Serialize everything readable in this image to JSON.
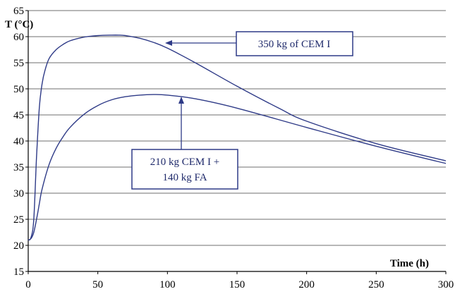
{
  "chart_data": {
    "type": "line",
    "xlabel": "Time (h)",
    "ylabel": "T (°C)",
    "xlim": [
      0,
      300
    ],
    "ylim": [
      15,
      65
    ],
    "grid": "horizontal",
    "xticks": [
      "0",
      "50",
      "100",
      "150",
      "200",
      "250",
      "300"
    ],
    "yticks": [
      "15",
      "20",
      "25",
      "30",
      "35",
      "40",
      "45",
      "50",
      "55",
      "60",
      "65"
    ],
    "line_color": "#2e3a87",
    "series": [
      {
        "name": "350 kg of CEM I",
        "x": [
          0,
          2,
          4,
          6,
          8,
          10,
          12,
          15,
          20,
          25,
          30,
          40,
          50,
          60,
          65,
          70,
          80,
          90,
          100,
          120,
          150,
          180,
          200,
          250,
          300
        ],
        "y": [
          21,
          21.5,
          25,
          37,
          46.5,
          51,
          53.5,
          55.8,
          57.5,
          58.5,
          59.2,
          59.9,
          60.2,
          60.3,
          60.3,
          60.2,
          59.7,
          58.9,
          57.8,
          55,
          50.5,
          46.3,
          43.8,
          39.5,
          36.2
        ]
      },
      {
        "name": "210 kg CEM I + 140 kg FA",
        "x": [
          0,
          2,
          4,
          6,
          8,
          10,
          15,
          20,
          25,
          30,
          40,
          50,
          60,
          70,
          80,
          90,
          100,
          120,
          150,
          200,
          250,
          300
        ],
        "y": [
          21,
          21.3,
          22.5,
          25,
          28,
          30.8,
          35.5,
          38.6,
          40.8,
          42.6,
          45.1,
          46.8,
          47.9,
          48.5,
          48.8,
          48.9,
          48.8,
          48.1,
          46.3,
          42.6,
          39,
          35.7
        ]
      }
    ],
    "annotations": [
      {
        "lines": [
          "350 kg of CEM I"
        ],
        "target_series": 0
      },
      {
        "lines": [
          "210 kg CEM I +",
          "140 kg FA"
        ],
        "target_series": 1
      }
    ]
  }
}
